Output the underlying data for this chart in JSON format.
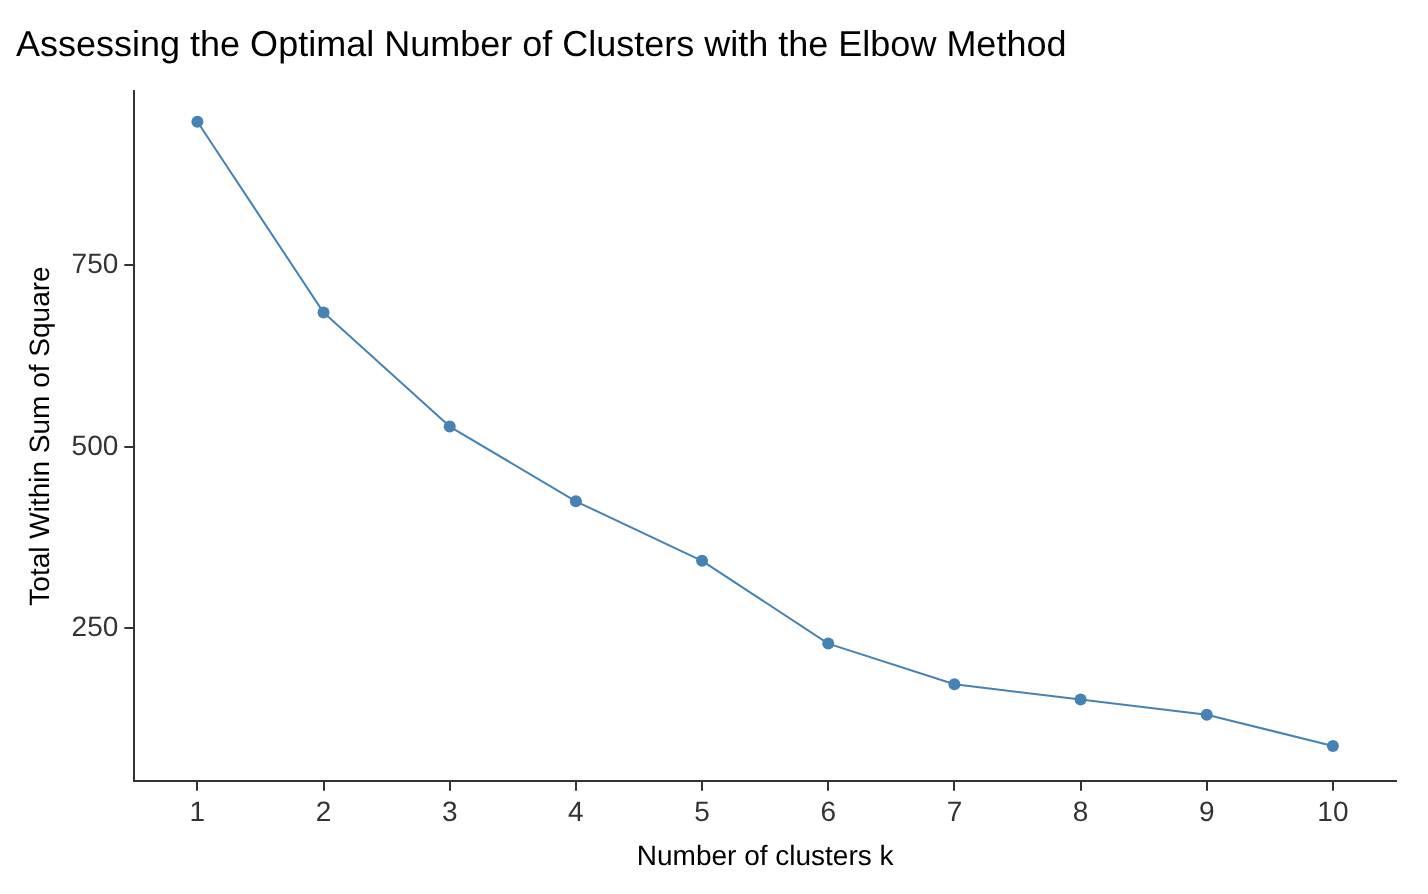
{
  "chart_data": {
    "type": "line",
    "title": "Assessing the Optimal Number of Clusters with the Elbow Method",
    "xlabel": "Number of clusters k",
    "ylabel": "Total Within Sum of Square",
    "categories": [
      "1",
      "2",
      "3",
      "4",
      "5",
      "6",
      "7",
      "8",
      "9",
      "10"
    ],
    "series": [
      {
        "color": "#4682b4",
        "values": [
          948,
          685,
          528,
          425,
          343,
          229,
          173,
          152,
          131,
          88
        ]
      }
    ],
    "ylim": [
      40,
      990
    ],
    "yticks": [
      250,
      500,
      750
    ],
    "grid": false,
    "legend": false,
    "marker": "circle",
    "line_style": "solid"
  }
}
